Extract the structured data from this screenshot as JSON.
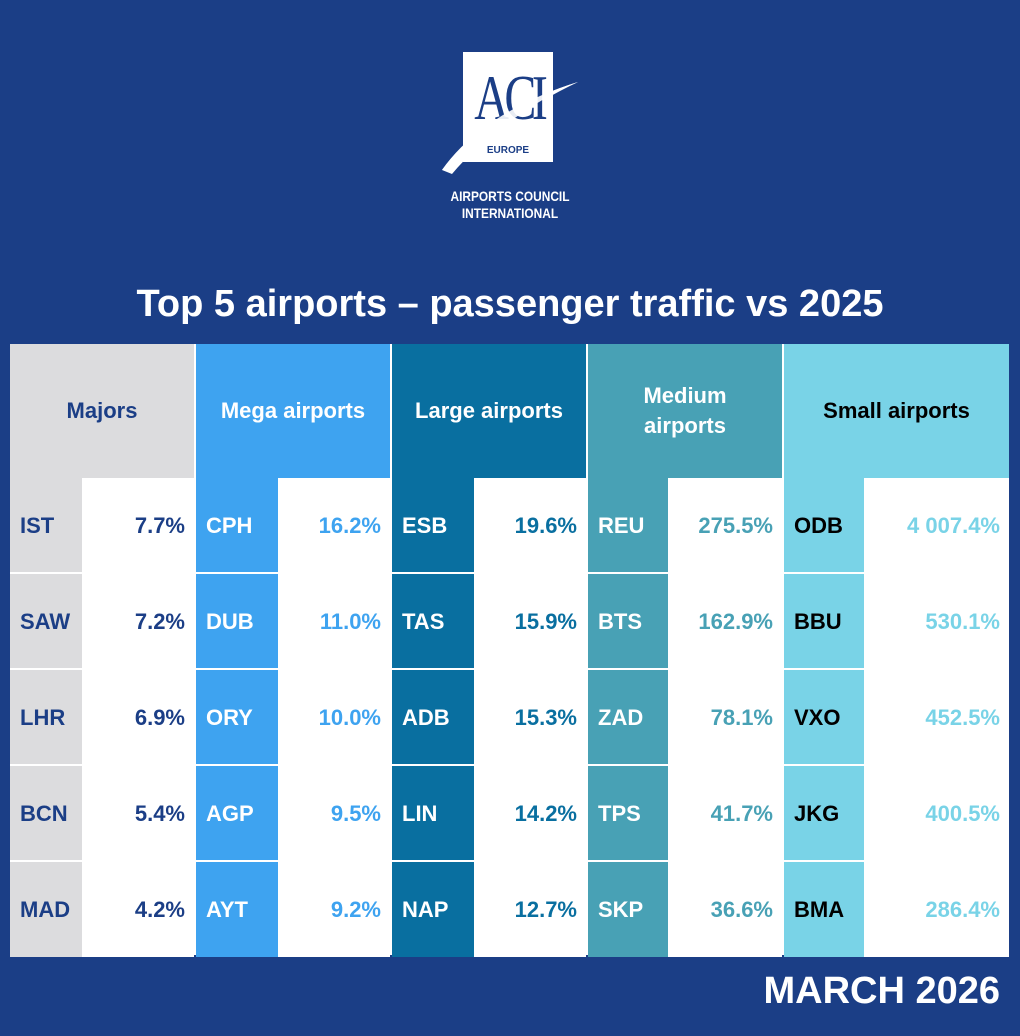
{
  "logo": {
    "mark": "ACI",
    "europe": "EUROPE",
    "line1": "AIRPORTS COUNCIL",
    "line2": "INTERNATIONAL"
  },
  "title": "Top 5 airports – passenger traffic vs 2025",
  "month": "MARCH 2026",
  "colors": {
    "background": "#1b3e86",
    "majors": "#dcdcde",
    "mega": "#3ea3f0",
    "large": "#096fa0",
    "medium": "#48a1b5",
    "small": "#79d3e7"
  },
  "categories": [
    {
      "header": "Majors",
      "airports": [
        {
          "code": "IST",
          "value": "7.7%"
        },
        {
          "code": "SAW",
          "value": "7.2%"
        },
        {
          "code": "LHR",
          "value": "6.9%"
        },
        {
          "code": "BCN",
          "value": "5.4%"
        },
        {
          "code": "MAD",
          "value": "4.2%"
        }
      ]
    },
    {
      "header": "Mega airports",
      "airports": [
        {
          "code": "CPH",
          "value": "16.2%"
        },
        {
          "code": "DUB",
          "value": "11.0%"
        },
        {
          "code": "ORY",
          "value": "10.0%"
        },
        {
          "code": "AGP",
          "value": "9.5%"
        },
        {
          "code": "AYT",
          "value": "9.2%"
        }
      ]
    },
    {
      "header": "Large airports",
      "airports": [
        {
          "code": "ESB",
          "value": "19.6%"
        },
        {
          "code": "TAS",
          "value": "15.9%"
        },
        {
          "code": "ADB",
          "value": "15.3%"
        },
        {
          "code": "LIN",
          "value": "14.2%"
        },
        {
          "code": "NAP",
          "value": "12.7%"
        }
      ]
    },
    {
      "header": "Medium airports",
      "airports": [
        {
          "code": "REU",
          "value": "275.5%"
        },
        {
          "code": "BTS",
          "value": "162.9%"
        },
        {
          "code": "ZAD",
          "value": "78.1%"
        },
        {
          "code": "TPS",
          "value": "41.7%"
        },
        {
          "code": "SKP",
          "value": "36.6%"
        }
      ]
    },
    {
      "header": "Small airports",
      "airports": [
        {
          "code": "ODB",
          "value": "4 007.4%"
        },
        {
          "code": "BBU",
          "value": "530.1%"
        },
        {
          "code": "VXO",
          "value": "452.5%"
        },
        {
          "code": "JKG",
          "value": "400.5%"
        },
        {
          "code": "BMA",
          "value": "286.4%"
        }
      ]
    }
  ]
}
